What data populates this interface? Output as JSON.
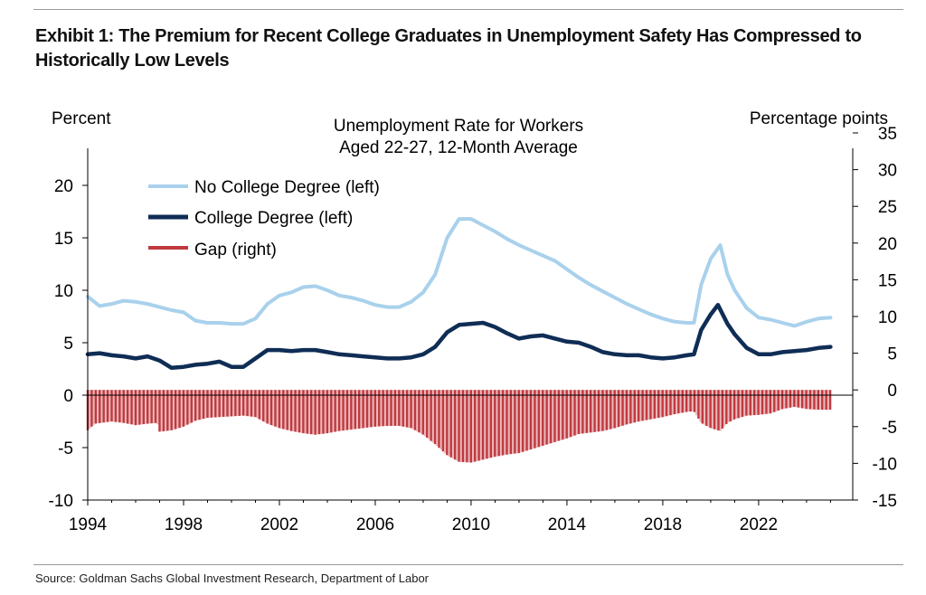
{
  "header": {
    "title": "Exhibit 1: The Premium for Recent College Graduates in Unemployment Safety Has Compressed to Historically Low Levels"
  },
  "footer": {
    "source": "Source: Goldman Sachs Global Investment Research, Department of Labor"
  },
  "chart_data": {
    "type": "line",
    "title": "Unemployment Rate for Workers\nAged 22-27, 12-Month Average",
    "title_lines": [
      "Unemployment Rate for Workers",
      "Aged 22-27, 12-Month Average"
    ],
    "ylabel_left": "Percent",
    "ylabel_right": "Percentage points",
    "ylim_left": [
      -10,
      25
    ],
    "ylim_right": [
      -15,
      35
    ],
    "xlim": [
      1994,
      2025.4
    ],
    "x_ticks": [
      "1994",
      "1998",
      "2002",
      "2006",
      "2010",
      "2014",
      "2018",
      "2022"
    ],
    "y_ticks_left": [
      "-10",
      "-5",
      "0",
      "5",
      "10",
      "15",
      "20"
    ],
    "y_ticks_right": [
      "-15",
      "-10",
      "-5",
      "0",
      "5",
      "10",
      "15",
      "20",
      "25",
      "30",
      "35"
    ],
    "grid": false,
    "legend_position": "top-left",
    "legend": [
      "No College Degree (left)",
      "College Degree (left)",
      "Gap (right)"
    ],
    "colors": {
      "no_college": "#a9d1ec",
      "college": "#0f2d55",
      "gap": "#c0393f"
    },
    "series": [
      {
        "name": "No College Degree (left)",
        "axis": "left",
        "style": "line",
        "points": [
          [
            1994.0,
            9.4
          ],
          [
            1994.5,
            8.5
          ],
          [
            1995.0,
            8.7
          ],
          [
            1995.5,
            9.0
          ],
          [
            1996.0,
            8.9
          ],
          [
            1996.5,
            8.7
          ],
          [
            1997.0,
            8.4
          ],
          [
            1997.5,
            8.1
          ],
          [
            1998.0,
            7.9
          ],
          [
            1998.5,
            7.1
          ],
          [
            1999.0,
            6.9
          ],
          [
            1999.5,
            6.9
          ],
          [
            2000.0,
            6.8
          ],
          [
            2000.5,
            6.8
          ],
          [
            2001.0,
            7.3
          ],
          [
            2001.5,
            8.7
          ],
          [
            2002.0,
            9.5
          ],
          [
            2002.5,
            9.8
          ],
          [
            2003.0,
            10.3
          ],
          [
            2003.5,
            10.4
          ],
          [
            2004.0,
            10.0
          ],
          [
            2004.5,
            9.5
          ],
          [
            2005.0,
            9.3
          ],
          [
            2005.5,
            9.0
          ],
          [
            2006.0,
            8.6
          ],
          [
            2006.5,
            8.4
          ],
          [
            2007.0,
            8.4
          ],
          [
            2007.5,
            8.9
          ],
          [
            2008.0,
            9.8
          ],
          [
            2008.5,
            11.5
          ],
          [
            2009.0,
            15.0
          ],
          [
            2009.5,
            16.8
          ],
          [
            2010.0,
            16.8
          ],
          [
            2010.5,
            16.2
          ],
          [
            2011.0,
            15.6
          ],
          [
            2011.5,
            14.9
          ],
          [
            2012.0,
            14.3
          ],
          [
            2012.5,
            13.8
          ],
          [
            2013.0,
            13.3
          ],
          [
            2013.5,
            12.8
          ],
          [
            2014.0,
            12.0
          ],
          [
            2014.5,
            11.2
          ],
          [
            2015.0,
            10.5
          ],
          [
            2015.5,
            9.9
          ],
          [
            2016.0,
            9.3
          ],
          [
            2016.5,
            8.7
          ],
          [
            2017.0,
            8.2
          ],
          [
            2017.5,
            7.7
          ],
          [
            2018.0,
            7.3
          ],
          [
            2018.5,
            7.0
          ],
          [
            2019.0,
            6.9
          ],
          [
            2019.3,
            6.9
          ],
          [
            2019.6,
            10.5
          ],
          [
            2020.0,
            13.0
          ],
          [
            2020.4,
            14.3
          ],
          [
            2020.7,
            11.5
          ],
          [
            2021.0,
            10.0
          ],
          [
            2021.5,
            8.3
          ],
          [
            2022.0,
            7.4
          ],
          [
            2022.5,
            7.2
          ],
          [
            2023.0,
            6.9
          ],
          [
            2023.5,
            6.6
          ],
          [
            2024.0,
            7.0
          ],
          [
            2024.5,
            7.3
          ],
          [
            2025.0,
            7.4
          ]
        ]
      },
      {
        "name": "College Degree (left)",
        "axis": "left",
        "style": "line",
        "points": [
          [
            1994.0,
            3.9
          ],
          [
            1994.5,
            4.0
          ],
          [
            1995.0,
            3.8
          ],
          [
            1995.5,
            3.7
          ],
          [
            1996.0,
            3.5
          ],
          [
            1996.5,
            3.7
          ],
          [
            1997.0,
            3.3
          ],
          [
            1997.5,
            2.6
          ],
          [
            1998.0,
            2.7
          ],
          [
            1998.5,
            2.9
          ],
          [
            1999.0,
            3.0
          ],
          [
            1999.5,
            3.2
          ],
          [
            2000.0,
            2.7
          ],
          [
            2000.5,
            2.7
          ],
          [
            2001.0,
            3.5
          ],
          [
            2001.5,
            4.3
          ],
          [
            2002.0,
            4.3
          ],
          [
            2002.5,
            4.2
          ],
          [
            2003.0,
            4.3
          ],
          [
            2003.5,
            4.3
          ],
          [
            2004.0,
            4.1
          ],
          [
            2004.5,
            3.9
          ],
          [
            2005.0,
            3.8
          ],
          [
            2005.5,
            3.7
          ],
          [
            2006.0,
            3.6
          ],
          [
            2006.5,
            3.5
          ],
          [
            2007.0,
            3.5
          ],
          [
            2007.5,
            3.6
          ],
          [
            2008.0,
            3.9
          ],
          [
            2008.5,
            4.6
          ],
          [
            2009.0,
            6.0
          ],
          [
            2009.5,
            6.7
          ],
          [
            2010.0,
            6.8
          ],
          [
            2010.5,
            6.9
          ],
          [
            2011.0,
            6.5
          ],
          [
            2011.5,
            5.9
          ],
          [
            2012.0,
            5.4
          ],
          [
            2012.5,
            5.6
          ],
          [
            2013.0,
            5.7
          ],
          [
            2013.5,
            5.4
          ],
          [
            2014.0,
            5.1
          ],
          [
            2014.5,
            5.0
          ],
          [
            2015.0,
            4.6
          ],
          [
            2015.5,
            4.1
          ],
          [
            2016.0,
            3.9
          ],
          [
            2016.5,
            3.8
          ],
          [
            2017.0,
            3.8
          ],
          [
            2017.5,
            3.6
          ],
          [
            2018.0,
            3.5
          ],
          [
            2018.5,
            3.6
          ],
          [
            2019.0,
            3.8
          ],
          [
            2019.3,
            3.9
          ],
          [
            2019.6,
            6.2
          ],
          [
            2020.0,
            7.7
          ],
          [
            2020.3,
            8.6
          ],
          [
            2020.7,
            6.8
          ],
          [
            2021.0,
            5.8
          ],
          [
            2021.5,
            4.5
          ],
          [
            2022.0,
            3.9
          ],
          [
            2022.5,
            3.9
          ],
          [
            2023.0,
            4.1
          ],
          [
            2023.5,
            4.2
          ],
          [
            2024.0,
            4.3
          ],
          [
            2024.5,
            4.5
          ],
          [
            2025.0,
            4.6
          ]
        ]
      },
      {
        "name": "Gap (right)",
        "axis": "right",
        "style": "bar",
        "bar_interval_years": 0.0833,
        "points": [
          [
            1994.0,
            -5.5
          ],
          [
            1994.3,
            -4.6
          ],
          [
            1995.0,
            -4.3
          ],
          [
            1995.5,
            -4.5
          ],
          [
            1996.0,
            -4.8
          ],
          [
            1996.5,
            -4.6
          ],
          [
            1996.9,
            -4.5
          ],
          [
            1997.0,
            -5.7
          ],
          [
            1997.5,
            -5.5
          ],
          [
            1998.0,
            -5.0
          ],
          [
            1998.5,
            -4.2
          ],
          [
            1999.0,
            -3.8
          ],
          [
            1999.5,
            -3.7
          ],
          [
            2000.0,
            -3.6
          ],
          [
            2000.5,
            -3.5
          ],
          [
            2001.0,
            -3.7
          ],
          [
            2001.5,
            -4.6
          ],
          [
            2002.0,
            -5.2
          ],
          [
            2002.5,
            -5.6
          ],
          [
            2003.0,
            -5.9
          ],
          [
            2003.5,
            -6.1
          ],
          [
            2004.0,
            -5.9
          ],
          [
            2004.5,
            -5.6
          ],
          [
            2005.0,
            -5.4
          ],
          [
            2005.5,
            -5.2
          ],
          [
            2006.0,
            -5.0
          ],
          [
            2006.5,
            -4.9
          ],
          [
            2007.0,
            -4.9
          ],
          [
            2007.5,
            -5.2
          ],
          [
            2008.0,
            -6.1
          ],
          [
            2008.5,
            -7.4
          ],
          [
            2009.0,
            -8.9
          ],
          [
            2009.5,
            -9.8
          ],
          [
            2010.0,
            -9.9
          ],
          [
            2010.5,
            -9.5
          ],
          [
            2011.0,
            -9.1
          ],
          [
            2011.5,
            -8.8
          ],
          [
            2012.0,
            -8.6
          ],
          [
            2012.5,
            -8.1
          ],
          [
            2013.0,
            -7.6
          ],
          [
            2013.5,
            -7.1
          ],
          [
            2014.0,
            -6.6
          ],
          [
            2014.5,
            -6.0
          ],
          [
            2015.0,
            -5.8
          ],
          [
            2015.5,
            -5.6
          ],
          [
            2016.0,
            -5.2
          ],
          [
            2016.5,
            -4.7
          ],
          [
            2017.0,
            -4.3
          ],
          [
            2017.5,
            -4.0
          ],
          [
            2018.0,
            -3.7
          ],
          [
            2018.5,
            -3.3
          ],
          [
            2019.0,
            -3.0
          ],
          [
            2019.3,
            -2.9
          ],
          [
            2019.6,
            -4.5
          ],
          [
            2020.0,
            -5.2
          ],
          [
            2020.4,
            -5.6
          ],
          [
            2020.7,
            -4.5
          ],
          [
            2021.0,
            -4.0
          ],
          [
            2021.5,
            -3.5
          ],
          [
            2022.0,
            -3.4
          ],
          [
            2022.5,
            -3.2
          ],
          [
            2023.0,
            -2.6
          ],
          [
            2023.5,
            -2.3
          ],
          [
            2024.0,
            -2.6
          ],
          [
            2024.5,
            -2.7
          ],
          [
            2025.0,
            -2.7
          ]
        ]
      }
    ]
  }
}
